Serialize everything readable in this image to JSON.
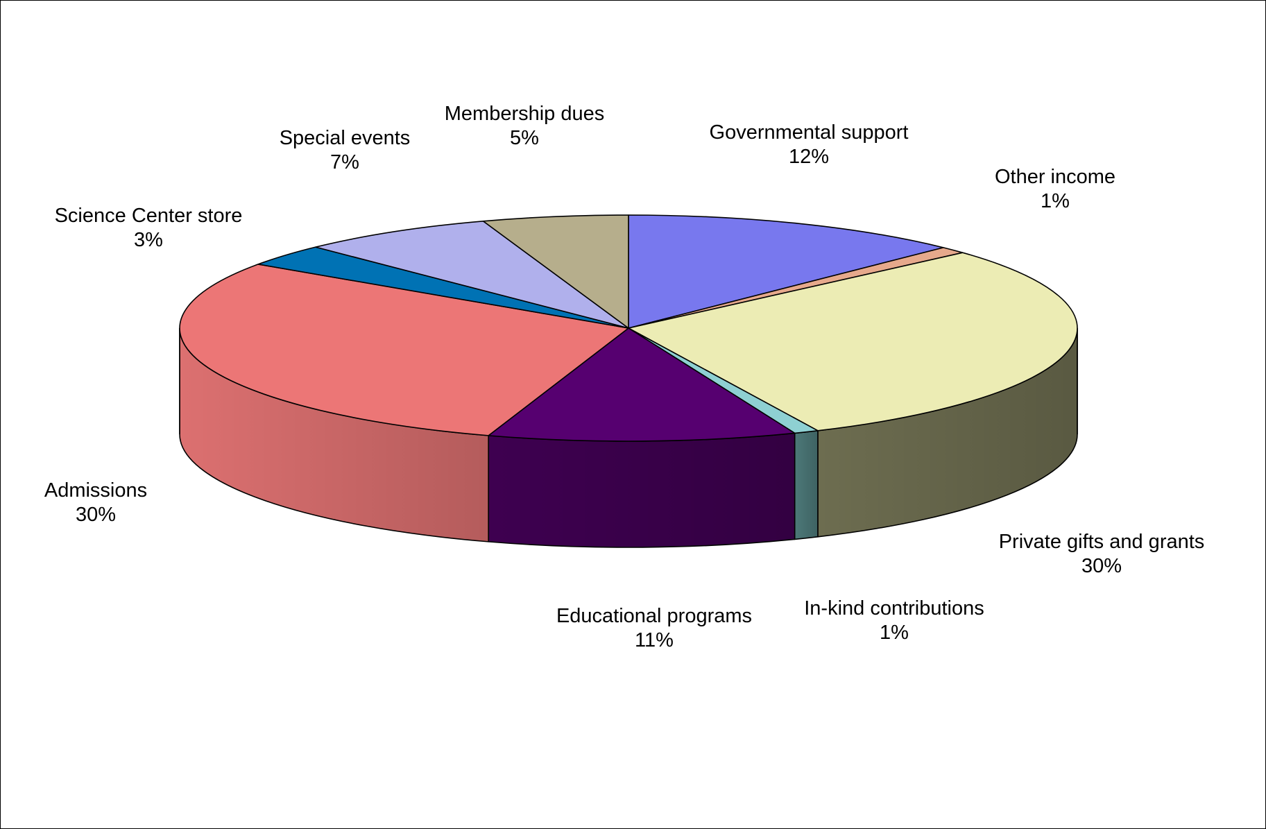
{
  "chart_data": {
    "type": "pie",
    "style": "3d-exploded-tilt",
    "title": "",
    "slices": [
      {
        "label": "Governmental support",
        "pct_label": "12%",
        "value": 12.5,
        "color": "#7878ee",
        "side_color": "#4e4ea8"
      },
      {
        "label": "Other income",
        "pct_label": "1%",
        "value": 1.0,
        "color": "#e6a98c",
        "side_color": "#a67a64"
      },
      {
        "label": "Private gifts and grants",
        "pct_label": "30%",
        "value": 30.0,
        "color": "#ececb4",
        "side_color": "#6d6d50"
      },
      {
        "label": "In-kind contributions",
        "pct_label": "1%",
        "value": 0.9,
        "color": "#8ed0d2",
        "side_color": "#4c7878"
      },
      {
        "label": "Educational programs",
        "pct_label": "11%",
        "value": 11.2,
        "color": "#560070",
        "side_color": "#3e0050"
      },
      {
        "label": "Admissions",
        "pct_label": "30%",
        "value": 29.8,
        "color": "#ec7676",
        "side_color": "#dc7070"
      },
      {
        "label": "Science Center store",
        "pct_label": "3%",
        "value": 3.2,
        "color": "#0072b4",
        "side_color": "#005080"
      },
      {
        "label": "Special events",
        "pct_label": "7%",
        "value": 7.1,
        "color": "#b0b0ec",
        "side_color": "#7c7cb0"
      },
      {
        "label": "Membership dues",
        "pct_label": "5%",
        "value": 5.3,
        "color": "#b6ae8c",
        "side_color": "#857f66"
      }
    ]
  }
}
